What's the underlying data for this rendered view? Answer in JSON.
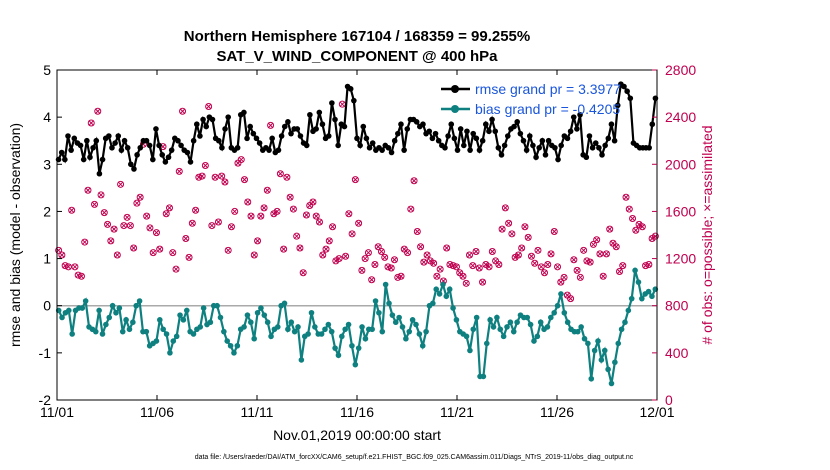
{
  "chart_data": {
    "type": "line",
    "title_line1": "Northern Hemisphere 167104 / 168359 = 99.255%",
    "title_line2": "SAT_V_WIND_COMPONENT @ 400 hPa",
    "xlabel": "Nov.01,2019 00:00:00 start",
    "ylabel": "rmse and bias (model - observation)",
    "ylabel_right": "# of obs: o=possible; ×=assimilated",
    "footnote": "data file: /Users/raeder/DAI/ATM_forcXX/CAM6_setup/f.e21.FHIST_BGC.f09_025.CAM6assim.011/Diags_NTrS_2019-11/obs_diag_output.nc",
    "x_ticks": [
      "11/01",
      "11/06",
      "11/11",
      "11/16",
      "11/21",
      "11/26",
      "12/01"
    ],
    "x_range_days": [
      0,
      30
    ],
    "ylim": [
      -2,
      5
    ],
    "y_ticks": [
      "-2",
      "-1",
      "0",
      "1",
      "2",
      "3",
      "4",
      "5"
    ],
    "ylim_right": [
      0,
      2800
    ],
    "y_ticks_right": [
      "0",
      "400",
      "800",
      "1200",
      "1600",
      "2000",
      "2400",
      "2800"
    ],
    "grid": false,
    "legend_position": "top-right",
    "colors": {
      "rmse": "#000000",
      "bias": "#0f8080",
      "obs": "#c0004f",
      "zero_line": "#aaaaaa"
    },
    "series": [
      {
        "name": "rmse grand pr = 3.3977",
        "axis": "left",
        "values": [
          3.1,
          3.25,
          3.1,
          3.6,
          3.3,
          3.55,
          3.45,
          3.4,
          3.1,
          3.5,
          3.15,
          3.35,
          3.5,
          2.8,
          3.1,
          3.55,
          3.6,
          3.35,
          3.45,
          3.6,
          3.3,
          3.5,
          3.35,
          3.0,
          2.9,
          3.2,
          3.35,
          3.5,
          3.5,
          3.4,
          3.1,
          3.75,
          3.4,
          3.2,
          3.05,
          3.15,
          3.3,
          3.55,
          3.5,
          3.4,
          3.3,
          3.25,
          3.05,
          3.5,
          3.85,
          3.6,
          3.95,
          3.8,
          4.0,
          3.95,
          3.55,
          3.5,
          3.35,
          3.75,
          4.0,
          3.35,
          3.3,
          3.35,
          4.05,
          4.1,
          3.55,
          3.8,
          3.65,
          3.55,
          3.45,
          3.3,
          3.35,
          3.3,
          3.55,
          3.25,
          3.3,
          3.6,
          3.8,
          3.9,
          3.65,
          3.75,
          3.75,
          3.6,
          3.45,
          3.4,
          4.05,
          3.7,
          3.75,
          4.1,
          3.85,
          3.55,
          3.6,
          4.3,
          3.95,
          3.4,
          3.85,
          3.8,
          4.65,
          4.6,
          4.35,
          3.55,
          3.4,
          3.8,
          3.55,
          3.35,
          3.45,
          3.3,
          3.35,
          3.3,
          3.4,
          3.35,
          3.25,
          3.5,
          3.65,
          3.85,
          3.3,
          3.75,
          3.95,
          3.95,
          3.9,
          3.8,
          3.85,
          3.65,
          3.7,
          3.55,
          3.65,
          3.5,
          3.4,
          3.35,
          3.6,
          3.85,
          3.55,
          3.3,
          3.75,
          3.4,
          3.7,
          3.3,
          3.65,
          3.55,
          3.3,
          3.5,
          3.85,
          3.7,
          3.95,
          3.7,
          3.35,
          3.2,
          3.4,
          3.6,
          3.75,
          3.8,
          3.9,
          3.65,
          3.5,
          3.3,
          3.6,
          3.4,
          3.15,
          3.35,
          3.5,
          3.2,
          3.5,
          3.4,
          3.35,
          3.1,
          3.4,
          3.6,
          3.55,
          3.7,
          4.0,
          3.75,
          4.05,
          3.2,
          3.15,
          3.6,
          3.35,
          3.45,
          3.35,
          3.2,
          3.4,
          3.55,
          3.85,
          3.5,
          4.25,
          4.7,
          4.65,
          4.55,
          4.4,
          3.45,
          3.4,
          3.35,
          3.35,
          3.35,
          3.35,
          3.85,
          4.4
        ]
      },
      {
        "name": "bias grand pr = -0.4205",
        "axis": "left",
        "values": [
          -0.1,
          -0.25,
          -0.15,
          -0.1,
          -0.6,
          -0.1,
          -0.05,
          -0.05,
          0.1,
          -0.45,
          -0.5,
          -0.55,
          -0.1,
          -0.6,
          -0.4,
          -0.25,
          0.0,
          -0.15,
          -0.05,
          -0.55,
          -0.3,
          -0.5,
          -0.35,
          0.0,
          0.1,
          -0.55,
          -0.55,
          -0.85,
          -0.8,
          -0.75,
          -0.3,
          -0.5,
          -0.6,
          -1.0,
          -0.75,
          -0.65,
          -0.2,
          -0.3,
          -0.1,
          -0.55,
          -0.6,
          -0.5,
          -0.45,
          -0.05,
          -0.4,
          -0.35,
          0.0,
          0.0,
          -0.25,
          -0.55,
          -0.75,
          -0.85,
          -1.0,
          -0.85,
          -0.5,
          -0.45,
          -0.2,
          -0.35,
          -0.7,
          -0.15,
          -0.05,
          -0.2,
          -0.35,
          -0.65,
          -0.5,
          -0.45,
          0.0,
          0.05,
          -0.5,
          -0.35,
          -0.55,
          -0.45,
          -1.15,
          -0.65,
          -0.6,
          -0.15,
          -0.45,
          -0.6,
          -0.6,
          -0.5,
          -0.4,
          -0.55,
          -0.9,
          -1.05,
          -0.65,
          -0.5,
          -0.4,
          -0.85,
          -1.25,
          -0.9,
          -0.45,
          -0.7,
          -0.5,
          -0.5,
          0.1,
          -0.15,
          -0.55,
          0.45,
          0.05,
          -0.2,
          -0.35,
          -0.25,
          -0.45,
          -0.7,
          -0.55,
          -0.3,
          -0.4,
          -0.6,
          -0.85,
          -0.55,
          0.0,
          0.05,
          0.35,
          0.25,
          0.45,
          0.2,
          0.35,
          -0.05,
          -0.3,
          -0.55,
          -0.6,
          -0.65,
          -0.95,
          -0.5,
          -0.25,
          -1.5,
          -1.5,
          -0.8,
          -0.3,
          -0.45,
          -0.25,
          -0.5,
          -0.65,
          -0.45,
          -0.35,
          -0.55,
          -0.35,
          -0.2,
          -0.25,
          -0.25,
          -0.4,
          -0.75,
          -0.65,
          -0.35,
          -0.5,
          -0.45,
          -0.25,
          -0.15,
          0.0,
          0.25,
          -0.15,
          -0.35,
          -0.5,
          -0.55,
          -0.55,
          -0.45,
          -0.7,
          -0.8,
          -1.55,
          -0.95,
          -0.75,
          -1.15,
          -0.95,
          -1.35,
          -1.65,
          -1.2,
          -0.8,
          -0.5,
          -0.35,
          -0.1,
          0.15,
          0.75,
          0.5,
          0.15,
          0.25,
          0.3,
          0.2,
          0.35
        ]
      },
      {
        "name": "obs_possible",
        "axis": "right",
        "values": [
          1270,
          1230,
          1140,
          1130,
          1610,
          1130,
          1060,
          1050,
          1340,
          1780,
          2350,
          1660,
          2450,
          1740,
          1590,
          1490,
          1350,
          1450,
          1230,
          1830,
          1480,
          1550,
          1480,
          1290,
          1670,
          1720,
          2170,
          1560,
          1460,
          1250,
          1420,
          1280,
          2150,
          1580,
          1630,
          1250,
          1110,
          1940,
          2450,
          1370,
          1210,
          1500,
          1610,
          1890,
          1900,
          1990,
          2490,
          1480,
          1890,
          1510,
          1900,
          1850,
          1270,
          1470,
          1600,
          2010,
          2040,
          1870,
          1680,
          1560,
          1230,
          1350,
          1560,
          1630,
          1780,
          2330,
          1580,
          1600,
          1920,
          1280,
          1890,
          1720,
          1620,
          1390,
          1290,
          1080,
          1570,
          1650,
          1680,
          1560,
          1510,
          1230,
          1280,
          1350,
          1470,
          1180,
          1200,
          2510,
          1220,
          1580,
          1410,
          1870,
          1500,
          1100,
          1200,
          1250,
          1020,
          1150,
          1300,
          1260,
          1210,
          1130,
          1120,
          1190,
          1040,
          1050,
          1280,
          1250,
          1620,
          1860,
          1430,
          1300,
          1170,
          1230,
          1180,
          1160,
          1050,
          1110,
          1010,
          1290,
          1150,
          1140,
          1130,
          1080,
          1050,
          990,
          1230,
          1140,
          1260,
          1120,
          1000,
          1150,
          1130,
          1260,
          1180,
          1150,
          1450,
          1630,
          1500,
          1410,
          1210,
          1230,
          1290,
          1470,
          1380,
          1220,
          1160,
          1270,
          1130,
          1080,
          1150,
          1240,
          1430,
          1130,
          1000,
          1040,
          890,
          860,
          1190,
          1100,
          1040,
          1270,
          1180,
          1170,
          1320,
          1360,
          1240,
          1050,
          1240,
          1450,
          1330,
          1300,
          1090,
          1140,
          1720,
          1620,
          1540,
          1440,
          1490,
          1470,
          1140,
          1150,
          1370,
          1390
        ]
      }
    ]
  }
}
